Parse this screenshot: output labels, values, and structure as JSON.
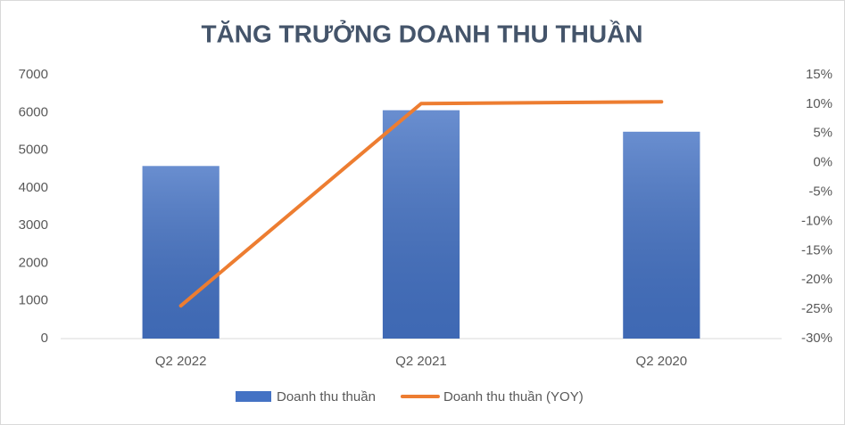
{
  "chart_data": {
    "type": "combo",
    "title": "TĂNG TRƯỞNG DOANH THU THUẦN",
    "categories": [
      "Q2 2022",
      "Q2 2021",
      "Q2 2020"
    ],
    "series": [
      {
        "name": "Doanh thu thuần",
        "type": "bar",
        "color": "#4472c4",
        "values": [
          4580,
          6060,
          5490
        ]
      },
      {
        "name": "Doanh thu thuần (YOY)",
        "type": "line",
        "axis": "y2",
        "color": "#ed7d31",
        "values": [
          -24.4,
          10.1,
          10.4
        ]
      }
    ],
    "ylim": [
      0,
      7000
    ],
    "yticks": [
      0,
      1000,
      2000,
      3000,
      4000,
      5000,
      6000,
      7000
    ],
    "y2lim": [
      -30,
      15
    ],
    "y2ticks": [
      {
        "value": -30,
        "label": "-30%"
      },
      {
        "value": -25,
        "label": "-25%"
      },
      {
        "value": -20,
        "label": "-20%"
      },
      {
        "value": -15,
        "label": "-15%"
      },
      {
        "value": -10,
        "label": "-10%"
      },
      {
        "value": -5,
        "label": "-5%"
      },
      {
        "value": 0,
        "label": "0%"
      },
      {
        "value": 5,
        "label": "5%"
      },
      {
        "value": 10,
        "label": "10%"
      },
      {
        "value": 15,
        "label": "15%"
      }
    ],
    "grid": false,
    "legend": "bottom"
  }
}
